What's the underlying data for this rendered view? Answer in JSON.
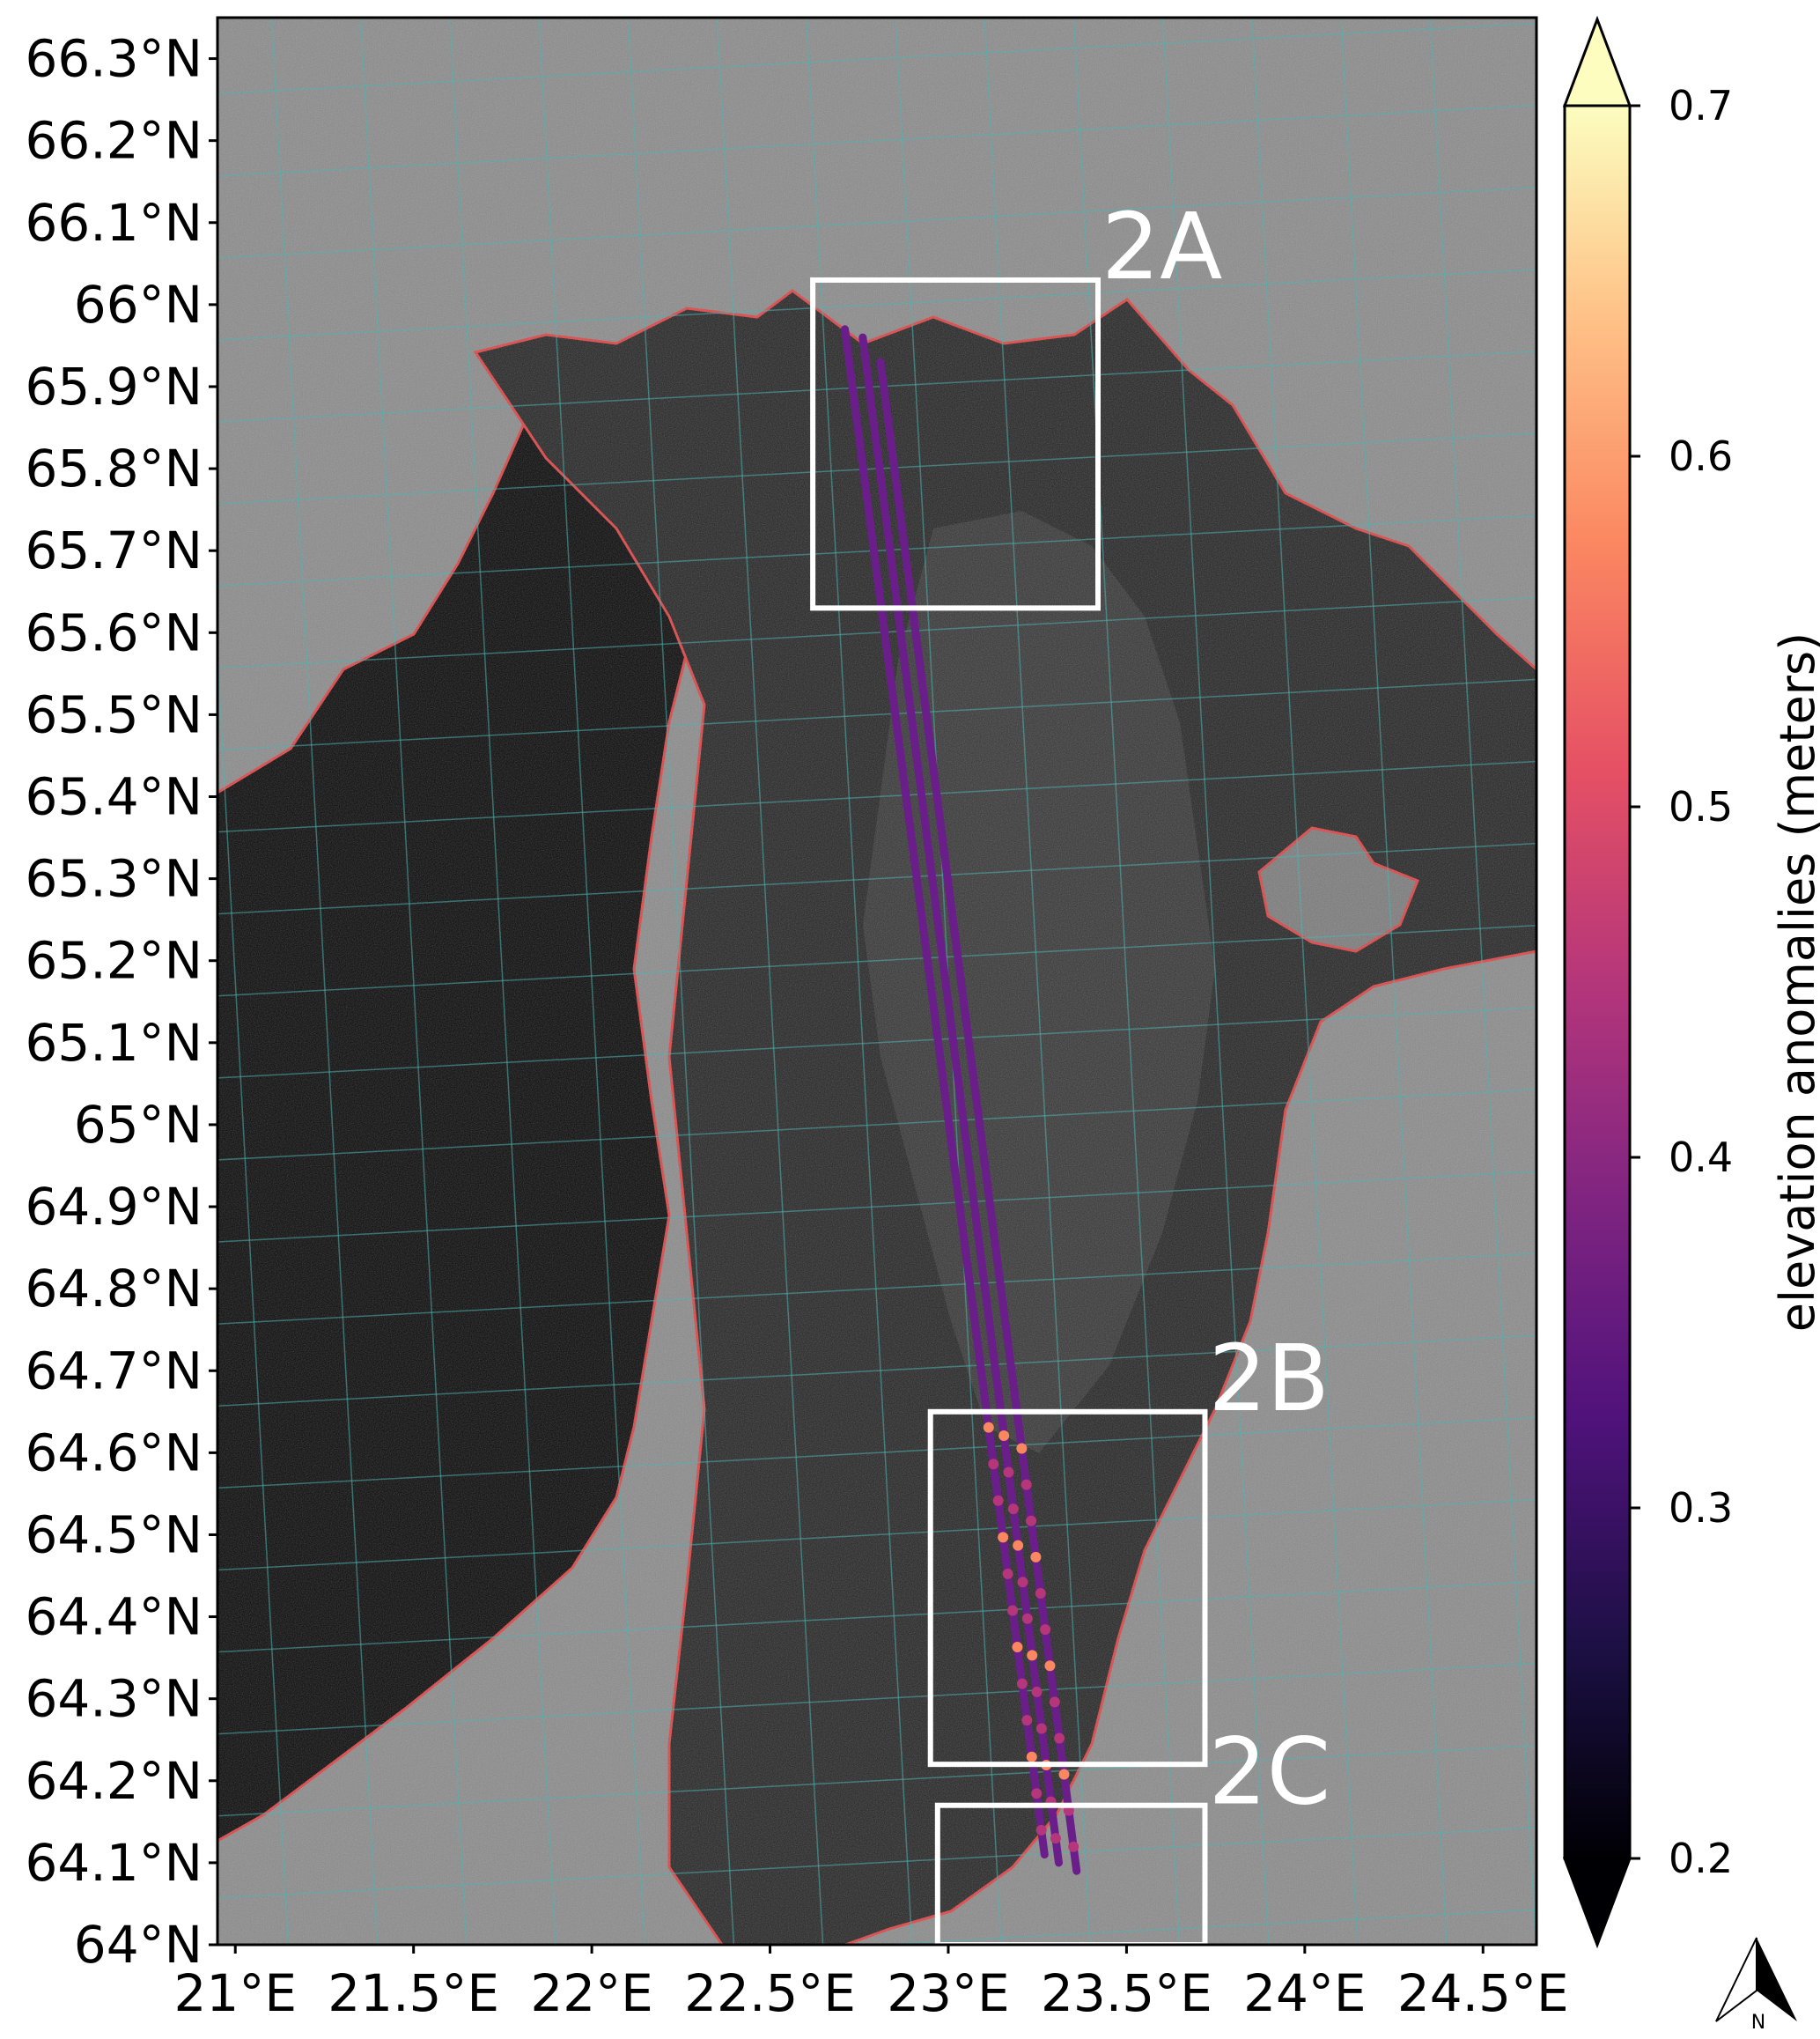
{
  "map": {
    "lat_ticks": [
      "66.3°N",
      "66.2°N",
      "66.1°N",
      "66°N",
      "65.9°N",
      "65.8°N",
      "65.7°N",
      "65.6°N",
      "65.5°N",
      "65.4°N",
      "65.3°N",
      "65.2°N",
      "65.1°N",
      "65°N",
      "64.9°N",
      "64.8°N",
      "64.7°N",
      "64.6°N",
      "64.5°N",
      "64.4°N",
      "64.3°N",
      "64.2°N",
      "64.1°N",
      "64°N"
    ],
    "lon_ticks": [
      "21°E",
      "21.5°E",
      "22°E",
      "22.5°E",
      "23°E",
      "23.5°E",
      "24°E",
      "24.5°E"
    ],
    "lat_values": [
      66.3,
      66.2,
      66.1,
      66.0,
      65.9,
      65.8,
      65.7,
      65.6,
      65.5,
      65.4,
      65.3,
      65.2,
      65.1,
      65.0,
      64.9,
      64.8,
      64.7,
      64.6,
      64.5,
      64.4,
      64.3,
      64.2,
      64.1,
      64.0
    ],
    "lon_values": [
      21.0,
      21.5,
      22.0,
      22.5,
      23.0,
      23.5,
      24.0,
      24.5
    ],
    "lat_range": [
      64.0,
      66.35
    ],
    "lon_range": [
      20.95,
      24.65
    ],
    "grid": true,
    "colors": {
      "land": "#8a8a8a",
      "sea_ice": "#1a1a1a",
      "open_water": "#050505",
      "coastline": "#e04040",
      "graticule": "#4fb3b3",
      "box": "#ffffff"
    }
  },
  "boxes": [
    {
      "label": "2A",
      "lon": [
        22.62,
        23.42
      ],
      "lat": [
        65.63,
        66.03
      ]
    },
    {
      "label": "2B",
      "lon": [
        22.95,
        23.72
      ],
      "lat": [
        64.22,
        64.65
      ]
    },
    {
      "label": "2C",
      "lon": [
        22.97,
        23.72
      ],
      "lat": [
        64.0,
        64.17
      ]
    }
  ],
  "tracks": [
    {
      "start": [
        22.71,
        65.97
      ],
      "end": [
        23.27,
        64.11
      ]
    },
    {
      "start": [
        22.76,
        65.96
      ],
      "end": [
        23.31,
        64.1
      ]
    },
    {
      "start": [
        22.81,
        65.93
      ],
      "end": [
        23.36,
        64.09
      ]
    }
  ],
  "colorbar": {
    "label": "elevation anomalies (meters)",
    "ticks": [
      "0.2",
      "0.3",
      "0.4",
      "0.5",
      "0.6",
      "0.7"
    ],
    "tick_values": [
      0.2,
      0.3,
      0.4,
      0.5,
      0.6,
      0.7
    ],
    "range": [
      0.2,
      0.7
    ],
    "colormap": "magma",
    "extend": "both"
  },
  "north_arrow": {
    "label": "N"
  }
}
